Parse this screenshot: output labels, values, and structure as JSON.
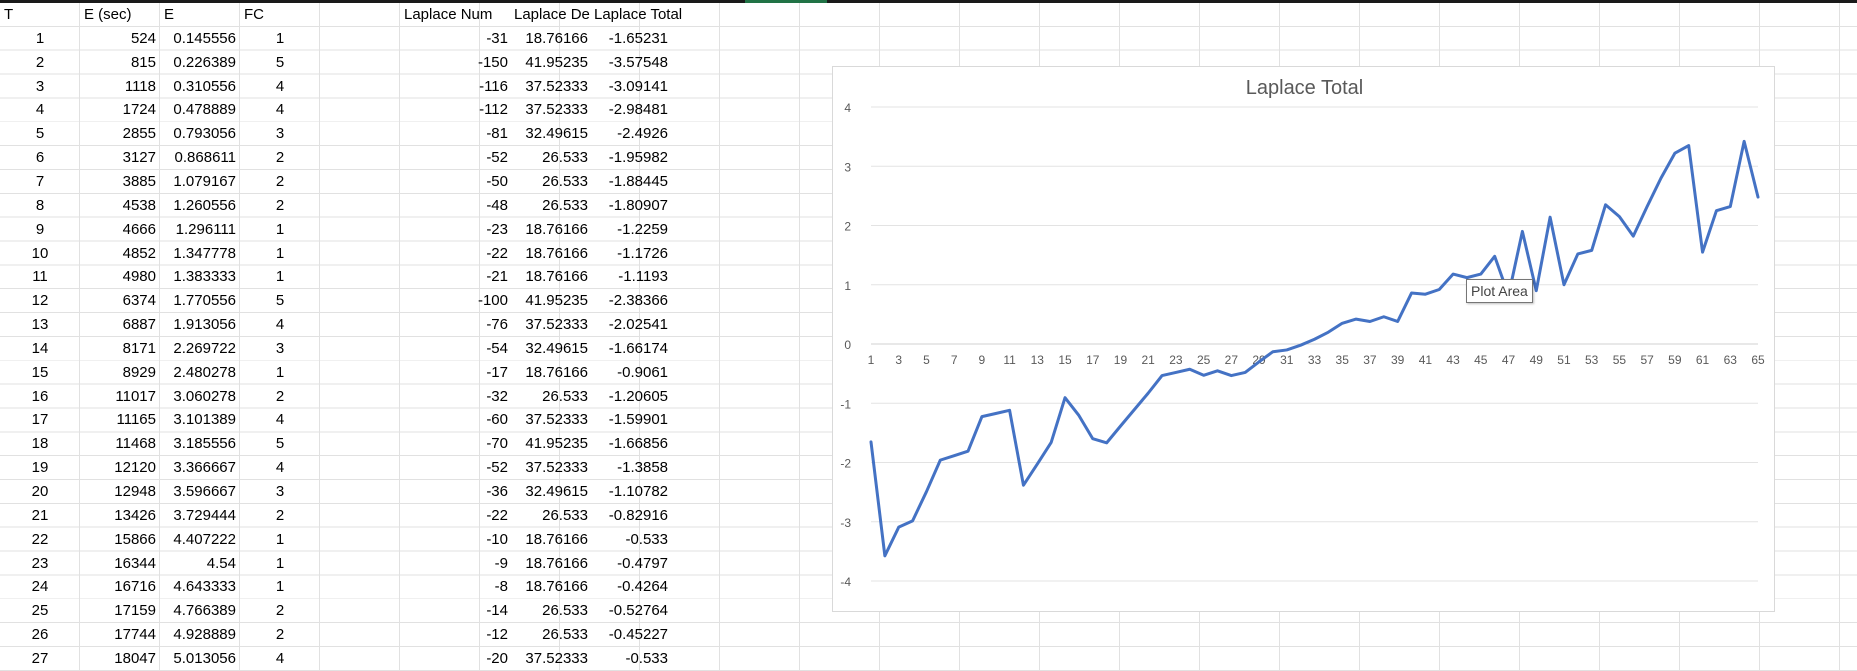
{
  "sheet": {
    "headers": [
      "T",
      "E (sec)",
      "E",
      "FC",
      "",
      "Laplace Num",
      "Laplace De",
      "Laplace Total"
    ],
    "rows": [
      [
        "1",
        "524",
        "0.145556",
        "1",
        "-31",
        "18.76166",
        "-1.65231"
      ],
      [
        "2",
        "815",
        "0.226389",
        "5",
        "-150",
        "41.95235",
        "-3.57548"
      ],
      [
        "3",
        "1118",
        "0.310556",
        "4",
        "-116",
        "37.52333",
        "-3.09141"
      ],
      [
        "4",
        "1724",
        "0.478889",
        "4",
        "-112",
        "37.52333",
        "-2.98481"
      ],
      [
        "5",
        "2855",
        "0.793056",
        "3",
        "-81",
        "32.49615",
        "-2.4926"
      ],
      [
        "6",
        "3127",
        "0.868611",
        "2",
        "-52",
        "26.533",
        "-1.95982"
      ],
      [
        "7",
        "3885",
        "1.079167",
        "2",
        "-50",
        "26.533",
        "-1.88445"
      ],
      [
        "8",
        "4538",
        "1.260556",
        "2",
        "-48",
        "26.533",
        "-1.80907"
      ],
      [
        "9",
        "4666",
        "1.296111",
        "1",
        "-23",
        "18.76166",
        "-1.2259"
      ],
      [
        "10",
        "4852",
        "1.347778",
        "1",
        "-22",
        "18.76166",
        "-1.1726"
      ],
      [
        "11",
        "4980",
        "1.383333",
        "1",
        "-21",
        "18.76166",
        "-1.1193"
      ],
      [
        "12",
        "6374",
        "1.770556",
        "5",
        "-100",
        "41.95235",
        "-2.38366"
      ],
      [
        "13",
        "6887",
        "1.913056",
        "4",
        "-76",
        "37.52333",
        "-2.02541"
      ],
      [
        "14",
        "8171",
        "2.269722",
        "3",
        "-54",
        "32.49615",
        "-1.66174"
      ],
      [
        "15",
        "8929",
        "2.480278",
        "1",
        "-17",
        "18.76166",
        "-0.9061"
      ],
      [
        "16",
        "11017",
        "3.060278",
        "2",
        "-32",
        "26.533",
        "-1.20605"
      ],
      [
        "17",
        "11165",
        "3.101389",
        "4",
        "-60",
        "37.52333",
        "-1.59901"
      ],
      [
        "18",
        "11468",
        "3.185556",
        "5",
        "-70",
        "41.95235",
        "-1.66856"
      ],
      [
        "19",
        "12120",
        "3.366667",
        "4",
        "-52",
        "37.52333",
        "-1.3858"
      ],
      [
        "20",
        "12948",
        "3.596667",
        "3",
        "-36",
        "32.49615",
        "-1.10782"
      ],
      [
        "21",
        "13426",
        "3.729444",
        "2",
        "-22",
        "26.533",
        "-0.82916"
      ],
      [
        "22",
        "15866",
        "4.407222",
        "1",
        "-10",
        "18.76166",
        "-0.533"
      ],
      [
        "23",
        "16344",
        "4.54",
        "1",
        "-9",
        "18.76166",
        "-0.4797"
      ],
      [
        "24",
        "16716",
        "4.643333",
        "1",
        "-8",
        "18.76166",
        "-0.4264"
      ],
      [
        "25",
        "17159",
        "4.766389",
        "2",
        "-14",
        "26.533",
        "-0.52764"
      ],
      [
        "26",
        "17744",
        "4.928889",
        "2",
        "-12",
        "26.533",
        "-0.45227"
      ],
      [
        "27",
        "18047",
        "5.013056",
        "4",
        "-20",
        "37.52333",
        "-0.533"
      ]
    ]
  },
  "tooltip": "Plot Area",
  "chart_data": {
    "type": "line",
    "title": "Laplace Total",
    "xlabel": "",
    "ylabel": "",
    "ylim": [
      -4,
      4
    ],
    "yticks": [
      -4,
      -3,
      -2,
      -1,
      0,
      1,
      2,
      3,
      4
    ],
    "x_tick_labels": [
      "1",
      "3",
      "5",
      "7",
      "9",
      "11",
      "13",
      "15",
      "17",
      "19",
      "21",
      "23",
      "25",
      "27",
      "29",
      "31",
      "33",
      "35",
      "37",
      "39",
      "41",
      "43",
      "45",
      "47",
      "49",
      "51",
      "53",
      "55",
      "57",
      "59",
      "61",
      "63",
      "65"
    ],
    "grid": true,
    "legend": "none",
    "line_color": "#4472c4",
    "series": [
      {
        "values": [
          -1.65231,
          -3.57548,
          -3.09141,
          -2.98481,
          -2.4926,
          -1.95982,
          -1.88445,
          -1.80907,
          -1.2259,
          -1.1726,
          -1.1193,
          -2.38366,
          -2.02541,
          -1.66174,
          -0.9061,
          -1.20605,
          -1.59901,
          -1.66856,
          -1.3858,
          -1.10782,
          -0.82916,
          -0.533,
          -0.4797,
          -0.4264,
          -0.52764,
          -0.45227,
          -0.533,
          -0.48,
          -0.3,
          -0.13,
          -0.1,
          -0.02,
          0.08,
          0.2,
          0.35,
          0.42,
          0.38,
          0.46,
          0.38,
          0.86,
          0.84,
          0.92,
          1.18,
          1.12,
          1.18,
          1.48,
          0.82,
          1.9,
          0.9,
          2.14,
          1.0,
          1.52,
          1.58,
          2.35,
          2.15,
          1.82,
          2.32,
          2.8,
          3.22,
          3.35,
          1.55,
          2.25,
          2.32,
          3.42,
          2.48
        ]
      }
    ]
  }
}
